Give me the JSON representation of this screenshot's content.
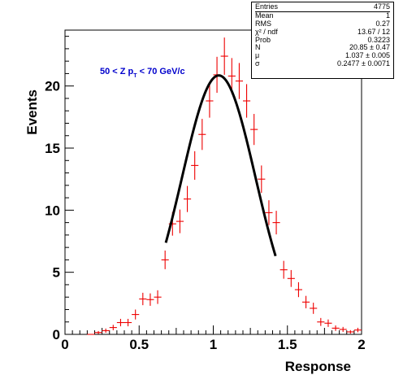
{
  "chart_data": {
    "type": "scatter",
    "title": "",
    "xlabel": "Response",
    "ylabel": "Events",
    "xlim": [
      0,
      2
    ],
    "ylim": [
      0,
      24.5
    ],
    "x_ticks": [
      "0",
      "0.5",
      "1",
      "1.5",
      "2"
    ],
    "y_ticks": [
      "0",
      "5",
      "10",
      "15",
      "20"
    ],
    "annotation": {
      "text_main": "50 < Z p",
      "text_sub": "T",
      "text_end": " < 70 GeV/c",
      "color": "#0000cc"
    },
    "series": [
      {
        "kind": "histogram-errorbars",
        "color": "#ee0000",
        "x_half_width": 0.025,
        "points": [
          {
            "x": 0.175,
            "y": 0.0,
            "err": 0.0
          },
          {
            "x": 0.225,
            "y": 0.15,
            "err": 0.12
          },
          {
            "x": 0.275,
            "y": 0.3,
            "err": 0.17
          },
          {
            "x": 0.325,
            "y": 0.55,
            "err": 0.22
          },
          {
            "x": 0.375,
            "y": 0.95,
            "err": 0.3
          },
          {
            "x": 0.425,
            "y": 0.95,
            "err": 0.3
          },
          {
            "x": 0.475,
            "y": 1.6,
            "err": 0.4
          },
          {
            "x": 0.525,
            "y": 2.85,
            "err": 0.5
          },
          {
            "x": 0.575,
            "y": 2.8,
            "err": 0.5
          },
          {
            "x": 0.625,
            "y": 3.0,
            "err": 0.55
          },
          {
            "x": 0.675,
            "y": 6.0,
            "err": 0.75
          },
          {
            "x": 0.725,
            "y": 8.9,
            "err": 0.95
          },
          {
            "x": 0.775,
            "y": 9.1,
            "err": 0.95
          },
          {
            "x": 0.825,
            "y": 10.9,
            "err": 1.05
          },
          {
            "x": 0.875,
            "y": 13.6,
            "err": 1.15
          },
          {
            "x": 0.925,
            "y": 16.1,
            "err": 1.25
          },
          {
            "x": 0.975,
            "y": 18.8,
            "err": 1.35
          },
          {
            "x": 1.025,
            "y": 20.9,
            "err": 1.45
          },
          {
            "x": 1.075,
            "y": 22.4,
            "err": 1.5
          },
          {
            "x": 1.125,
            "y": 20.8,
            "err": 1.45
          },
          {
            "x": 1.175,
            "y": 20.4,
            "err": 1.45
          },
          {
            "x": 1.225,
            "y": 18.8,
            "err": 1.35
          },
          {
            "x": 1.275,
            "y": 16.5,
            "err": 1.25
          },
          {
            "x": 1.325,
            "y": 12.5,
            "err": 1.1
          },
          {
            "x": 1.375,
            "y": 9.8,
            "err": 1.0
          },
          {
            "x": 1.425,
            "y": 9.0,
            "err": 0.95
          },
          {
            "x": 1.475,
            "y": 5.2,
            "err": 0.72
          },
          {
            "x": 1.525,
            "y": 4.5,
            "err": 0.68
          },
          {
            "x": 1.575,
            "y": 3.6,
            "err": 0.6
          },
          {
            "x": 1.625,
            "y": 2.6,
            "err": 0.5
          },
          {
            "x": 1.675,
            "y": 2.1,
            "err": 0.45
          },
          {
            "x": 1.725,
            "y": 1.0,
            "err": 0.32
          },
          {
            "x": 1.775,
            "y": 0.9,
            "err": 0.3
          },
          {
            "x": 1.825,
            "y": 0.5,
            "err": 0.22
          },
          {
            "x": 1.875,
            "y": 0.4,
            "err": 0.2
          },
          {
            "x": 1.925,
            "y": 0.2,
            "err": 0.14
          },
          {
            "x": 1.975,
            "y": 0.35,
            "err": 0.18
          }
        ]
      },
      {
        "kind": "gaussian-fit",
        "color": "#000000",
        "N": 20.85,
        "mu": 1.037,
        "sigma": 0.2477,
        "range": [
          0.68,
          1.42
        ]
      }
    ],
    "stats": {
      "header": {
        "label": "Entries",
        "value": "4775"
      },
      "rows": [
        {
          "label": "Mean",
          "value": "1"
        },
        {
          "label": "RMS",
          "value": "0.27"
        },
        {
          "label": "χ² / ndf",
          "value": "13.67 / 12"
        },
        {
          "label": "Prob",
          "value": "0.3223"
        },
        {
          "label": "N",
          "value": "20.85 ± 0.47"
        },
        {
          "label": "μ",
          "value": "1.037 ± 0.005"
        },
        {
          "label": "σ",
          "value": "0.2477 ± 0.0071"
        }
      ]
    }
  }
}
